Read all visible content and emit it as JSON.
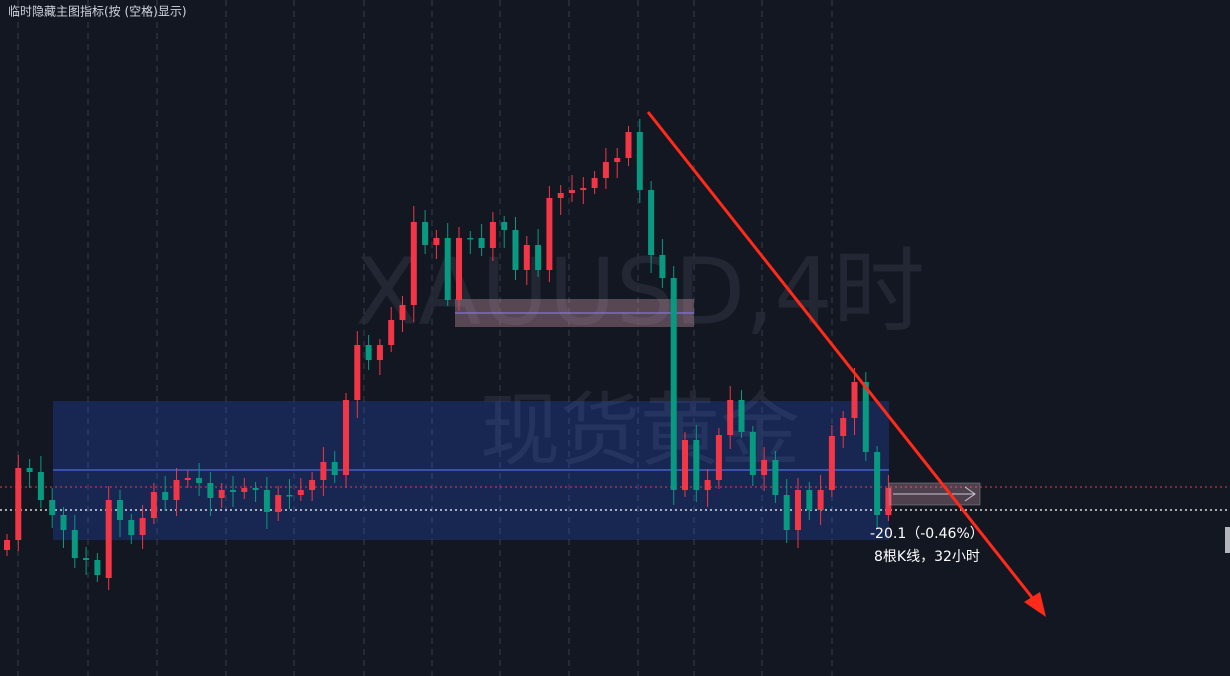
{
  "header": {
    "hint": "临时隐藏主图指标(按 (空格)显示)"
  },
  "watermark": {
    "symbol": "XAUUSD,4时",
    "name": "现货黄金"
  },
  "measure": {
    "change": "-20.1（-0.46%）",
    "bars": "8根K线，32小时"
  }
}
